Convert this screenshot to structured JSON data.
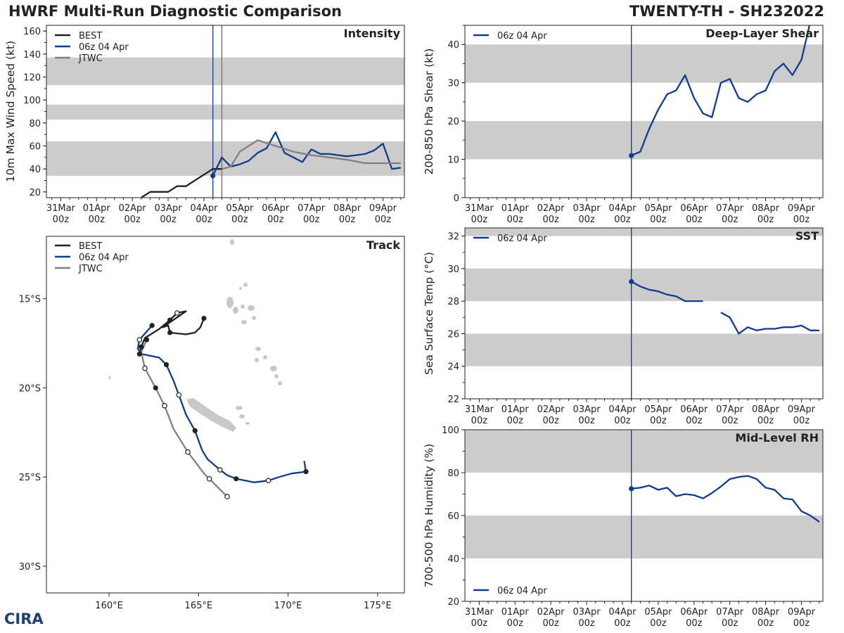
{
  "header": {
    "title": "HWRF Multi-Run Diagnostic Comparison",
    "storm": "TWENTY-TH - SH232022"
  },
  "logo": {
    "text": "CIRA"
  },
  "time_axis": {
    "ticks": [
      {
        "day": 0,
        "label1": "31Mar",
        "label2": "00z"
      },
      {
        "day": 1,
        "label1": "01Apr",
        "label2": "00z"
      },
      {
        "day": 2,
        "label1": "02Apr",
        "label2": "00z"
      },
      {
        "day": 3,
        "label1": "03Apr",
        "label2": "00z"
      },
      {
        "day": 4,
        "label1": "04Apr",
        "label2": "00z"
      },
      {
        "day": 5,
        "label1": "05Apr",
        "label2": "00z"
      },
      {
        "day": 6,
        "label1": "06Apr",
        "label2": "00z"
      },
      {
        "day": 7,
        "label1": "07Apr",
        "label2": "00z"
      },
      {
        "day": 8,
        "label1": "08Apr",
        "label2": "00z"
      },
      {
        "day": 9,
        "label1": "09Apr",
        "label2": "00z"
      }
    ],
    "init_day": 4.25,
    "jtwc_day": 4.5,
    "xlim": [
      -0.4,
      9.6
    ]
  },
  "colors": {
    "best": "#222222",
    "hwrf": "#0d3d8c",
    "jtwc": "#808080",
    "band": "#cccccc",
    "land": "#c8c8c8"
  },
  "chart_data": [
    {
      "id": "intensity",
      "type": "line",
      "title": "Intensity",
      "ylabel": "10m Max Wind Speed (kt)",
      "ylim": [
        15,
        165
      ],
      "yticks": [
        20,
        40,
        60,
        80,
        100,
        120,
        140,
        160
      ],
      "bands": [
        [
          34,
          64
        ],
        [
          83,
          96
        ],
        [
          113,
          137
        ]
      ],
      "legend": [
        "BEST",
        "06z 04 Apr",
        "JTWC"
      ],
      "series": [
        {
          "name": "BEST",
          "color": "#222222",
          "x": [
            2.25,
            2.5,
            2.75,
            3.0,
            3.25,
            3.5,
            3.75,
            4.0,
            4.25,
            4.5
          ],
          "y": [
            15,
            20,
            20,
            20,
            25,
            25,
            30,
            35,
            40,
            40
          ]
        },
        {
          "name": "06z 04 Apr",
          "color": "#0d3d8c",
          "x": [
            4.25,
            4.5,
            4.75,
            5.0,
            5.25,
            5.5,
            5.75,
            6.0,
            6.25,
            6.5,
            6.75,
            7.0,
            7.25,
            7.5,
            7.75,
            8.0,
            8.25,
            8.5,
            8.75,
            9.0,
            9.25,
            9.5
          ],
          "y": [
            34,
            50,
            42,
            44,
            47,
            54,
            58,
            72,
            54,
            50,
            46,
            57,
            53,
            53,
            52,
            51,
            52,
            53,
            56,
            62,
            40,
            41
          ]
        },
        {
          "name": "JTWC",
          "color": "#808080",
          "x": [
            4.5,
            4.75,
            5.0,
            5.5,
            6.0,
            6.5,
            7.0,
            7.5,
            8.0,
            8.5,
            9.0,
            9.5
          ],
          "y": [
            40,
            42,
            55,
            65,
            60,
            55,
            52,
            50,
            48,
            45,
            45,
            45
          ]
        }
      ]
    },
    {
      "id": "shear",
      "type": "line",
      "title": "Deep-Layer Shear",
      "ylabel": "200-850 hPa Shear (kt)",
      "ylim": [
        0,
        45
      ],
      "yticks": [
        0,
        10,
        20,
        30,
        40
      ],
      "bands": [
        [
          10,
          20
        ],
        [
          30,
          40
        ]
      ],
      "legend": [
        "06z 04 Apr"
      ],
      "series": [
        {
          "name": "06z 04 Apr",
          "color": "#0d3d8c",
          "x": [
            4.25,
            4.5,
            4.75,
            5.0,
            5.25,
            5.5,
            5.75,
            6.0,
            6.25,
            6.5,
            6.75,
            7.0,
            7.25,
            7.5,
            7.75,
            8.0,
            8.25,
            8.5,
            8.75,
            9.0,
            9.25
          ],
          "y": [
            11,
            12,
            18,
            23,
            27,
            28,
            32,
            26,
            22,
            21,
            30,
            31,
            26,
            25,
            27,
            28,
            33,
            35,
            32,
            36,
            46
          ]
        }
      ]
    },
    {
      "id": "sst",
      "type": "line",
      "title": "SST",
      "ylabel": "Sea Surface Temp (°C)",
      "ylim": [
        22,
        32.5
      ],
      "yticks": [
        22,
        24,
        26,
        28,
        30,
        32
      ],
      "bands": [
        [
          24,
          26
        ],
        [
          28,
          30
        ],
        [
          32,
          32.5
        ]
      ],
      "legend": [
        "06z 04 Apr"
      ],
      "series": [
        {
          "name": "06z 04 Apr",
          "color": "#0d3d8c",
          "x": [
            4.25,
            4.5,
            4.75,
            5.0,
            5.25,
            5.5,
            5.75,
            6.0,
            6.25
          ],
          "y": [
            29.2,
            28.9,
            28.7,
            28.6,
            28.4,
            28.3,
            28.0,
            28.0,
            28.0
          ]
        },
        {
          "name": "06z 04 Apr (cont.)",
          "color": "#0d3d8c",
          "x": [
            6.75,
            7.0,
            7.25,
            7.5,
            7.75,
            8.0,
            8.25,
            8.5,
            8.75,
            9.0,
            9.25,
            9.5
          ],
          "y": [
            27.3,
            27.0,
            26.0,
            26.4,
            26.2,
            26.3,
            26.3,
            26.4,
            26.4,
            26.5,
            26.2,
            26.2
          ]
        }
      ]
    },
    {
      "id": "rh",
      "type": "line",
      "title": "Mid-Level RH",
      "ylabel": "700-500 hPa Humidity (%)",
      "ylim": [
        20,
        100
      ],
      "yticks": [
        20,
        40,
        60,
        80,
        100
      ],
      "bands": [
        [
          40,
          60
        ],
        [
          80,
          100
        ]
      ],
      "legend": [
        "06z 04 Apr"
      ],
      "series": [
        {
          "name": "06z 04 Apr",
          "color": "#0d3d8c",
          "x": [
            4.25,
            4.5,
            4.75,
            5.0,
            5.25,
            5.5,
            5.75,
            6.0,
            6.25,
            6.5,
            6.75,
            7.0,
            7.25,
            7.5,
            7.75,
            8.0,
            8.25,
            8.5,
            8.75,
            9.0,
            9.25,
            9.5
          ],
          "y": [
            72.5,
            73,
            74,
            72,
            73,
            69,
            70,
            69.5,
            68,
            70.5,
            73.5,
            77,
            78,
            78.5,
            77,
            73,
            72,
            68,
            67.5,
            62,
            60,
            57
          ]
        }
      ]
    },
    {
      "id": "track",
      "type": "scatter",
      "title": "Track",
      "xlim": [
        156.5,
        176.5
      ],
      "ylim": [
        -31.5,
        -11.5
      ],
      "xticks": [
        {
          "v": 160,
          "label": "160°E"
        },
        {
          "v": 165,
          "label": "165°E"
        },
        {
          "v": 170,
          "label": "170°E"
        },
        {
          "v": 175,
          "label": "175°E"
        }
      ],
      "yticks": [
        {
          "v": -15,
          "label": "15°S"
        },
        {
          "v": -20,
          "label": "20°S"
        },
        {
          "v": -25,
          "label": "25°S"
        },
        {
          "v": -30,
          "label": "30°S"
        }
      ],
      "legend": [
        "BEST",
        "06z 04 Apr",
        "JTWC"
      ],
      "series": [
        {
          "name": "BEST",
          "color": "#222222",
          "lon": [
            165.3,
            165.1,
            164.8,
            164.3,
            163.4,
            163.3,
            163.0,
            164.3,
            163.8,
            163.4,
            162.8,
            162.0,
            161.8,
            161.7
          ],
          "lat": [
            -16.1,
            -16.6,
            -16.9,
            -17.0,
            -16.9,
            -16.5,
            -16.6,
            -15.7,
            -15.8,
            -16.2,
            -16.7,
            -17.2,
            -17.7,
            -18.1
          ],
          "filled": [
            0,
            4,
            9,
            12,
            13
          ],
          "hollow": [
            8
          ]
        },
        {
          "name": "06z 04 Apr",
          "color": "#0d3d8c",
          "lon": [
            162.4,
            161.7,
            161.6,
            161.8,
            162.8,
            163.2,
            163.6,
            163.9,
            164.3,
            164.8,
            165.2,
            165.5,
            166.2,
            166.6,
            167.1,
            168.1,
            168.9,
            169.5,
            170.2,
            171.0,
            170.9
          ],
          "lat": [
            -16.5,
            -17.3,
            -17.8,
            -18.1,
            -18.3,
            -18.7,
            -19.6,
            -20.4,
            -21.5,
            -22.4,
            -23.5,
            -24.0,
            -24.6,
            -24.9,
            -25.1,
            -25.3,
            -25.2,
            -25.0,
            -24.8,
            -24.7,
            -24.1
          ],
          "filled": [
            0,
            5,
            9,
            14,
            19
          ],
          "hollow": [
            1,
            7,
            12,
            16
          ]
        },
        {
          "name": "JTWC",
          "color": "#808080",
          "lon": [
            162.1,
            161.8,
            162.0,
            162.6,
            163.1,
            163.6,
            164.4,
            165.3,
            165.6,
            166.6
          ],
          "lat": [
            -17.3,
            -18.0,
            -18.9,
            -20.0,
            -21.0,
            -22.3,
            -23.6,
            -24.8,
            -25.1,
            -26.1
          ],
          "filled": [
            0,
            3
          ],
          "hollow": [
            2,
            4,
            6,
            8,
            9
          ]
        }
      ]
    }
  ]
}
